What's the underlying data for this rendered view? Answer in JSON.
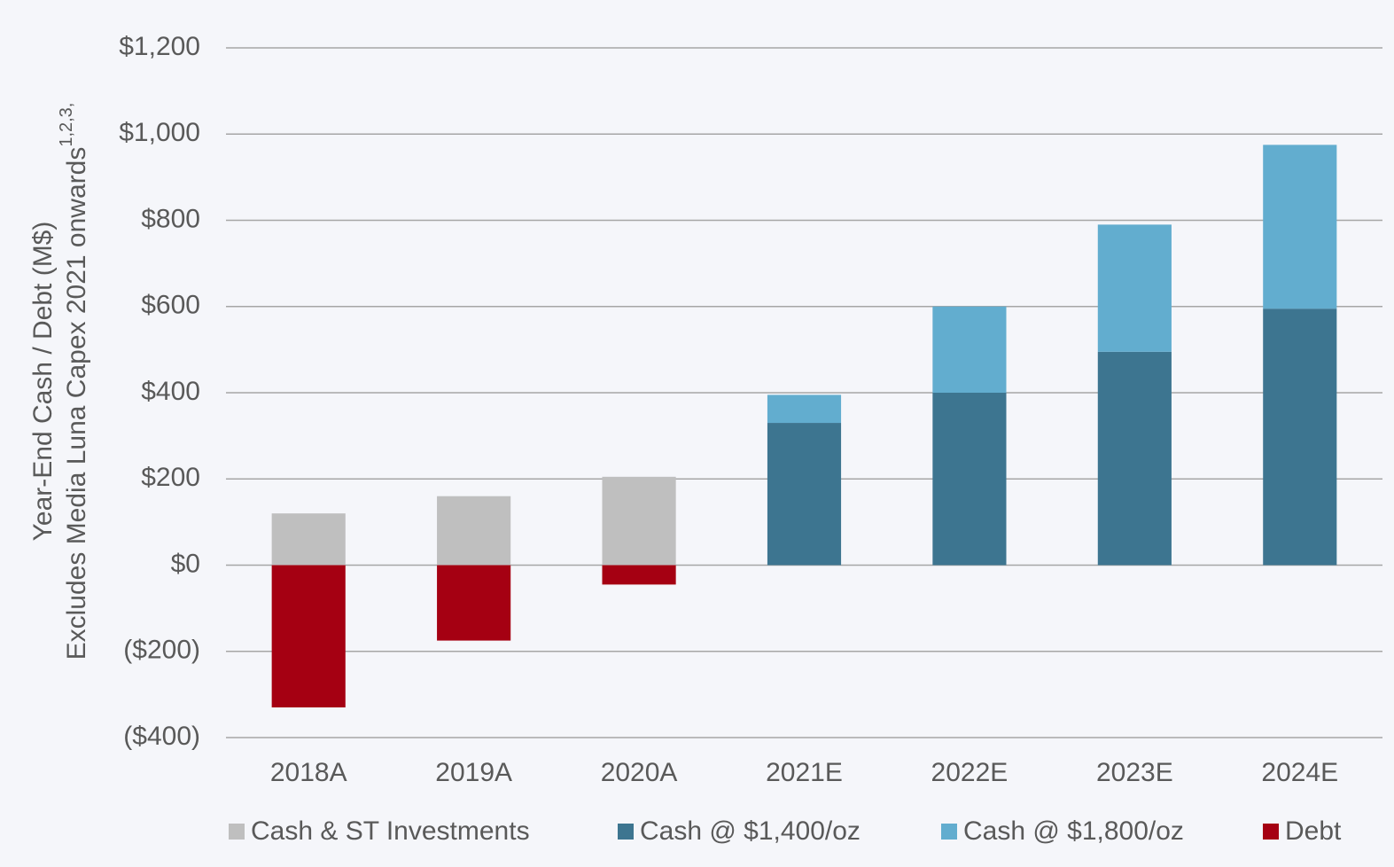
{
  "chart_data": {
    "type": "stacked_bar",
    "y_label": [
      "Year-End Cash / Debt (M$)",
      "Excludes Media Luna Capex 2021 onwards"
    ],
    "y_label_superscript": "1,2,3,",
    "categories": [
      "2018A",
      "2019A",
      "2020A",
      "2021E",
      "2022E",
      "2023E",
      "2024E"
    ],
    "series": [
      {
        "name": "Cash & ST Investments",
        "color": "#bfbfbf",
        "values": [
          120,
          160,
          205,
          null,
          null,
          null,
          null
        ]
      },
      {
        "name": "Cash @ $1,400/oz",
        "color": "#3d7590",
        "values": [
          null,
          null,
          null,
          330,
          400,
          495,
          595
        ]
      },
      {
        "name": "Cash @ $1,800/oz",
        "color": "#62adcf",
        "values": [
          null,
          null,
          null,
          65,
          200,
          295,
          380
        ]
      },
      {
        "name": "Debt",
        "color": "#a50012",
        "values": [
          -330,
          -175,
          -45,
          null,
          null,
          null,
          null
        ]
      }
    ],
    "ylim": [
      -400,
      1200
    ],
    "yticks": [
      {
        "value": -400,
        "label": "($400)"
      },
      {
        "value": -200,
        "label": "($200)"
      },
      {
        "value": 0,
        "label": "$0"
      },
      {
        "value": 200,
        "label": "$200"
      },
      {
        "value": 400,
        "label": "$400"
      },
      {
        "value": 600,
        "label": "$600"
      },
      {
        "value": 800,
        "label": "$800"
      },
      {
        "value": 1000,
        "label": "$1,000"
      },
      {
        "value": 1200,
        "label": "$1,200"
      }
    ],
    "grid": true,
    "legend": "bottom"
  }
}
